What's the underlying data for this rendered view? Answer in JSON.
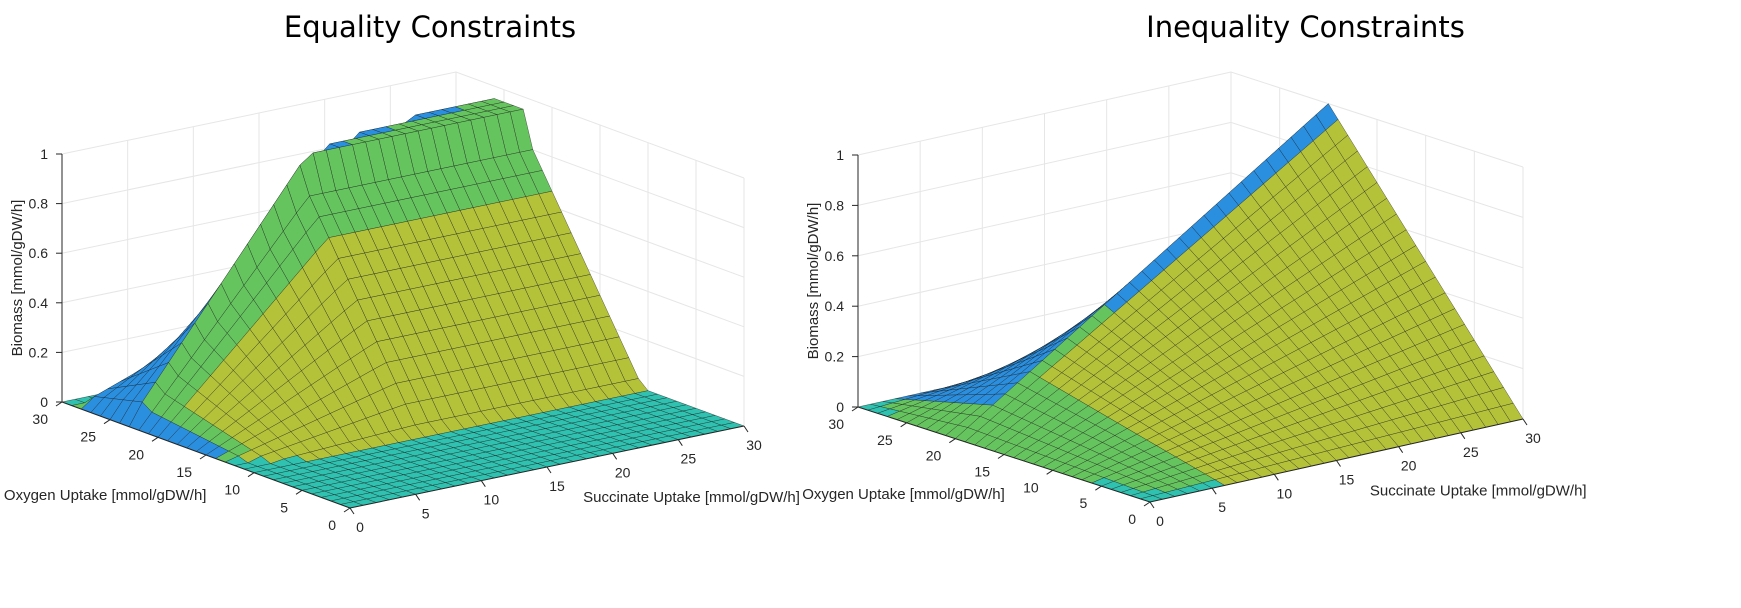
{
  "colors": {
    "blue": "#2b8fe0",
    "teal": "#2fc2b0",
    "green": "#66c45e",
    "olive": "#b4c23a",
    "yellow": "#f2bb32",
    "grid": "#e6e6e6",
    "axis": "#262626"
  },
  "chart_data": [
    {
      "type": "surface",
      "title": "Equality Constraints",
      "xlabel": "Succinate Uptake [mmol/gDW/h]",
      "ylabel": "Oxygen Uptake [mmol/gDW/h]",
      "zlabel": "Biomass [mmol/gDW/h]",
      "xlim": [
        0,
        30
      ],
      "ylim": [
        0,
        30
      ],
      "zlim": [
        0,
        1
      ],
      "xticks": [
        "0",
        "5",
        "10",
        "15",
        "20",
        "25",
        "30"
      ],
      "yticks": [
        "0",
        "5",
        "10",
        "15",
        "20",
        "25",
        "30"
      ],
      "zticks": [
        "0",
        "0.2",
        "0.4",
        "0.6",
        "0.8",
        "1"
      ],
      "grid": true,
      "mesh_resolution": 31,
      "surface": "biomass rises with succinate uptake up to a ridge near oxygen 20–25 (peak ~0.95 at succinate 30); outside the feasible oxygen/succinate band the equality-constrained biomass is 0 (flat teal floor), with a jagged yellow fringe along the edge near high succinate / low oxygen"
    },
    {
      "type": "surface",
      "title": "Inequality Constraints",
      "xlabel": "Succinate Uptake [mmol/gDW/h]",
      "ylabel": "Oxygen Uptake [mmol/gDW/h]",
      "zlabel": "Biomass [mmol/gDW/h]",
      "xlim": [
        0,
        30
      ],
      "ylim": [
        0,
        30
      ],
      "zlim": [
        0,
        1
      ],
      "xticks": [
        "0",
        "5",
        "10",
        "15",
        "20",
        "25",
        "30"
      ],
      "yticks": [
        "0",
        "5",
        "10",
        "15",
        "20",
        "25",
        "30"
      ],
      "zticks": [
        "0",
        "0.2",
        "0.4",
        "0.6",
        "0.8",
        "1"
      ],
      "grid": true,
      "mesh_resolution": 31,
      "surface": "pyramid-like surface: biomass rises with both succinate and oxygen uptake, peaking near 1.0 at succinate 30 / oxygen 20"
    }
  ]
}
